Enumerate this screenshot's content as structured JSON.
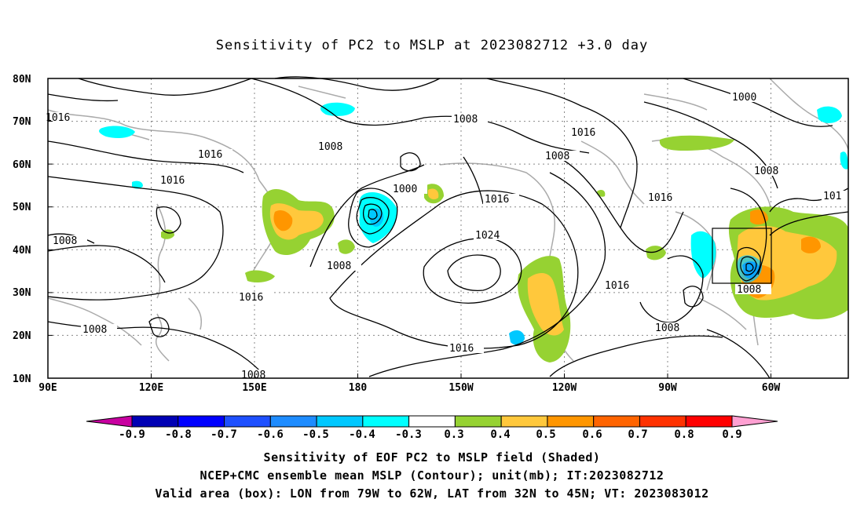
{
  "title": "Sensitivity of PC2 to MSLP at 2023082712 +3.0 day",
  "lat_labels": [
    "80N",
    "70N",
    "60N",
    "50N",
    "40N",
    "30N",
    "20N",
    "10N"
  ],
  "lon_labels": [
    "90E",
    "120E",
    "150E",
    "180",
    "150W",
    "120W",
    "90W",
    "60W"
  ],
  "contour_labels": {
    "c1016a": "1016",
    "c1016b": "1016",
    "c1016c": "1016",
    "c1016d": "1016",
    "c1016e": "1016",
    "c1016f": "1016",
    "c1016g": "1016",
    "c1016h": "1016",
    "c1016i": "1016",
    "c1008a": "1008",
    "c1008b": "1008",
    "c1008c": "1008",
    "c1008d": "1008",
    "c1008e": "1008",
    "c1008f": "1008",
    "c1008g": "1008",
    "c1008h": "1008",
    "c1008i": "1008",
    "c1008j": "1008",
    "c1000a": "1000",
    "c1000b": "1000",
    "c1024": "1024",
    "c101": "101"
  },
  "colorbar": {
    "labels": [
      "-0.9",
      "-0.8",
      "-0.7",
      "-0.6",
      "-0.5",
      "-0.4",
      "-0.3",
      "0.3",
      "0.4",
      "0.5",
      "0.6",
      "0.7",
      "0.8",
      "0.9"
    ],
    "colors": [
      "#0000b4",
      "#0000ff",
      "#1e50ff",
      "#1e8cff",
      "#00c8ff",
      "#00ffff",
      "#ffffff",
      "#96d232",
      "#ffc83c",
      "#ff9600",
      "#ff6400",
      "#ff3200",
      "#ff0000"
    ],
    "low_end_color": "#c800a0",
    "high_end_color": "#ffa0d2"
  },
  "valid_box": {
    "lon_from": "79W",
    "lon_to": "62W",
    "lat_from": "32N",
    "lat_to": "45N"
  },
  "caption": {
    "line1": "Sensitivity of EOF PC2 to MSLP field (Shaded)",
    "line2": "NCEP+CMC ensemble mean MSLP (Contour); unit(mb); IT:2023082712",
    "line3": "Valid area (box): LON from 79W to 62W, LAT from 32N to 45N; VT: 2023083012"
  }
}
